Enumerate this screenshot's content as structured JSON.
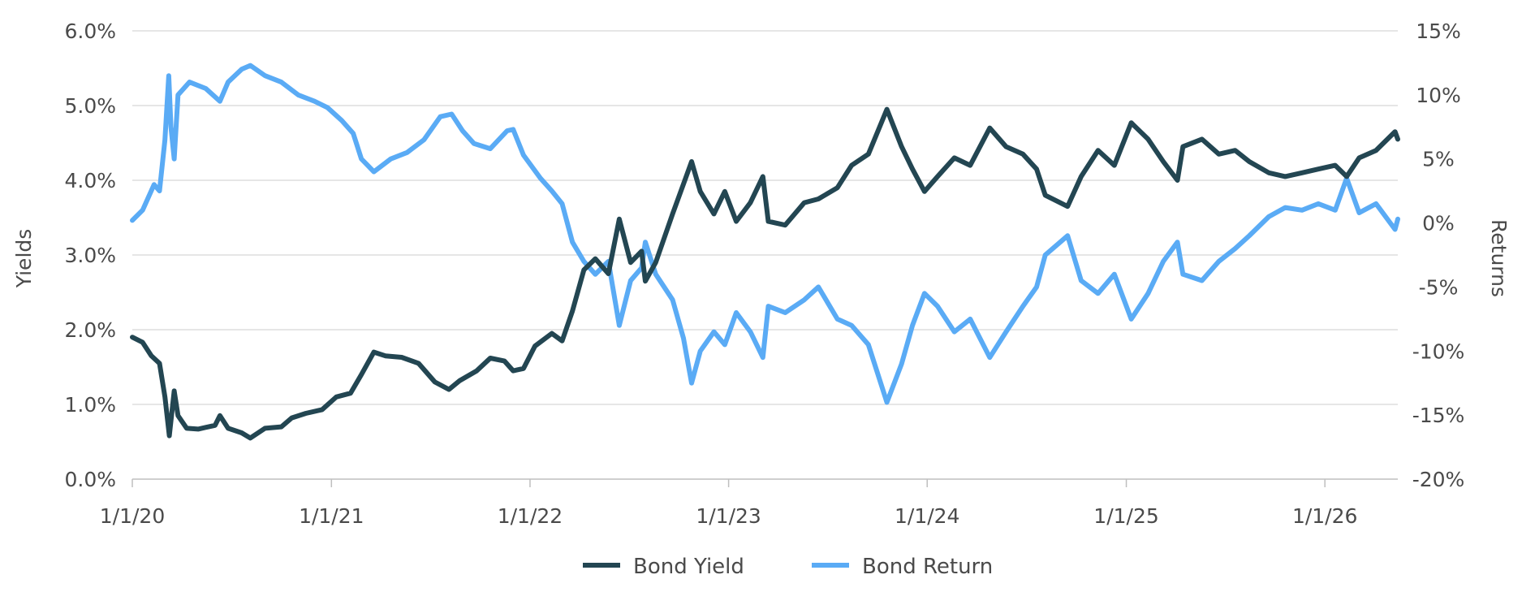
{
  "chart_data": {
    "type": "line",
    "x_tick_labels": [
      "1/1/20",
      "1/1/21",
      "1/1/22",
      "1/1/23",
      "1/1/24",
      "1/1/25",
      "1/1/26"
    ],
    "x_tick_dates": [
      "2020-01-01",
      "2021-01-01",
      "2022-01-01",
      "2023-01-01",
      "2024-01-01",
      "2025-01-01",
      "2026-01-01"
    ],
    "x_range": [
      "2020-01-01",
      "2026-05-15"
    ],
    "y_left": {
      "label": "Yields",
      "range": [
        0,
        6
      ],
      "ticks": [
        0,
        1,
        2,
        3,
        4,
        5,
        6
      ],
      "tick_labels": [
        "0.0%",
        "1.0%",
        "2.0%",
        "3.0%",
        "4.0%",
        "5.0%",
        "6.0%"
      ]
    },
    "y_right": {
      "label": "Returns",
      "range": [
        -20,
        15
      ],
      "ticks": [
        -20,
        -15,
        -10,
        -5,
        0,
        5,
        10,
        15
      ],
      "tick_labels": [
        "-20%",
        "-15%",
        "-10%",
        "-5%",
        "0%",
        "5%",
        "10%",
        "15%"
      ]
    },
    "grid": true,
    "legend_position": "bottom-center",
    "series": [
      {
        "name": "Bond Yield",
        "axis": "left",
        "color": "#234652",
        "points": [
          [
            "2020-01-01",
            1.9
          ],
          [
            "2020-01-20",
            1.83
          ],
          [
            "2020-02-05",
            1.65
          ],
          [
            "2020-02-20",
            1.55
          ],
          [
            "2020-03-01",
            1.1
          ],
          [
            "2020-03-09",
            0.58
          ],
          [
            "2020-03-18",
            1.18
          ],
          [
            "2020-03-25",
            0.85
          ],
          [
            "2020-04-10",
            0.68
          ],
          [
            "2020-05-01",
            0.67
          ],
          [
            "2020-06-01",
            0.72
          ],
          [
            "2020-06-10",
            0.85
          ],
          [
            "2020-06-25",
            0.68
          ],
          [
            "2020-07-20",
            0.62
          ],
          [
            "2020-08-05",
            0.55
          ],
          [
            "2020-09-01",
            0.68
          ],
          [
            "2020-10-01",
            0.7
          ],
          [
            "2020-10-20",
            0.82
          ],
          [
            "2020-11-15",
            0.88
          ],
          [
            "2020-12-15",
            0.93
          ],
          [
            "2021-01-10",
            1.1
          ],
          [
            "2021-02-05",
            1.15
          ],
          [
            "2021-02-25",
            1.4
          ],
          [
            "2021-03-20",
            1.7
          ],
          [
            "2021-04-10",
            1.65
          ],
          [
            "2021-05-10",
            1.63
          ],
          [
            "2021-06-10",
            1.55
          ],
          [
            "2021-07-10",
            1.3
          ],
          [
            "2021-08-05",
            1.2
          ],
          [
            "2021-08-25",
            1.32
          ],
          [
            "2021-09-25",
            1.45
          ],
          [
            "2021-10-20",
            1.62
          ],
          [
            "2021-11-15",
            1.58
          ],
          [
            "2021-12-01",
            1.45
          ],
          [
            "2021-12-20",
            1.48
          ],
          [
            "2022-01-10",
            1.78
          ],
          [
            "2022-02-10",
            1.95
          ],
          [
            "2022-03-01",
            1.85
          ],
          [
            "2022-03-20",
            2.25
          ],
          [
            "2022-04-10",
            2.8
          ],
          [
            "2022-05-01",
            2.95
          ],
          [
            "2022-05-25",
            2.75
          ],
          [
            "2022-06-14",
            3.48
          ],
          [
            "2022-07-05",
            2.9
          ],
          [
            "2022-07-25",
            3.05
          ],
          [
            "2022-08-01",
            2.65
          ],
          [
            "2022-08-20",
            2.9
          ],
          [
            "2022-09-20",
            3.55
          ],
          [
            "2022-10-10",
            3.95
          ],
          [
            "2022-10-25",
            4.25
          ],
          [
            "2022-11-10",
            3.85
          ],
          [
            "2022-12-05",
            3.55
          ],
          [
            "2022-12-25",
            3.85
          ],
          [
            "2023-01-15",
            3.45
          ],
          [
            "2023-02-10",
            3.7
          ],
          [
            "2023-03-05",
            4.05
          ],
          [
            "2023-03-15",
            3.45
          ],
          [
            "2023-04-15",
            3.4
          ],
          [
            "2023-05-20",
            3.7
          ],
          [
            "2023-06-15",
            3.75
          ],
          [
            "2023-07-20",
            3.9
          ],
          [
            "2023-08-15",
            4.2
          ],
          [
            "2023-09-15",
            4.35
          ],
          [
            "2023-10-19",
            4.95
          ],
          [
            "2023-11-15",
            4.45
          ],
          [
            "2023-12-05",
            4.15
          ],
          [
            "2023-12-27",
            3.85
          ],
          [
            "2024-01-20",
            4.05
          ],
          [
            "2024-02-20",
            4.3
          ],
          [
            "2024-03-20",
            4.2
          ],
          [
            "2024-04-25",
            4.7
          ],
          [
            "2024-05-25",
            4.45
          ],
          [
            "2024-06-25",
            4.35
          ],
          [
            "2024-07-20",
            4.15
          ],
          [
            "2024-08-05",
            3.8
          ],
          [
            "2024-09-15",
            3.65
          ],
          [
            "2024-10-10",
            4.05
          ],
          [
            "2024-11-10",
            4.4
          ],
          [
            "2024-12-10",
            4.2
          ],
          [
            "2025-01-10",
            4.77
          ],
          [
            "2025-02-10",
            4.55
          ],
          [
            "2025-03-10",
            4.25
          ],
          [
            "2025-04-05",
            4.0
          ],
          [
            "2025-04-15",
            4.45
          ],
          [
            "2025-05-20",
            4.55
          ],
          [
            "2025-06-20",
            4.35
          ],
          [
            "2025-07-20",
            4.4
          ],
          [
            "2025-08-15",
            4.25
          ],
          [
            "2025-09-20",
            4.1
          ],
          [
            "2025-10-20",
            4.05
          ],
          [
            "2025-11-20",
            4.1
          ],
          [
            "2025-12-20",
            4.15
          ],
          [
            "2026-01-20",
            4.2
          ],
          [
            "2026-02-10",
            4.05
          ],
          [
            "2026-03-05",
            4.3
          ],
          [
            "2026-04-05",
            4.4
          ],
          [
            "2026-05-10",
            4.65
          ],
          [
            "2026-05-15",
            4.55
          ]
        ]
      },
      {
        "name": "Bond Return",
        "axis": "right",
        "color": "#5aabf5",
        "points": [
          [
            "2020-01-01",
            0.2
          ],
          [
            "2020-01-20",
            1.0
          ],
          [
            "2020-02-10",
            3.0
          ],
          [
            "2020-02-20",
            2.5
          ],
          [
            "2020-03-01",
            6.5
          ],
          [
            "2020-03-08",
            11.5
          ],
          [
            "2020-03-12",
            7.5
          ],
          [
            "2020-03-18",
            5.0
          ],
          [
            "2020-03-25",
            10.0
          ],
          [
            "2020-04-15",
            11.0
          ],
          [
            "2020-05-15",
            10.5
          ],
          [
            "2020-06-10",
            9.5
          ],
          [
            "2020-06-25",
            11.0
          ],
          [
            "2020-07-20",
            12.0
          ],
          [
            "2020-08-05",
            12.3
          ],
          [
            "2020-09-01",
            11.5
          ],
          [
            "2020-10-01",
            11.0
          ],
          [
            "2020-11-01",
            10.0
          ],
          [
            "2020-12-01",
            9.5
          ],
          [
            "2020-12-25",
            9.0
          ],
          [
            "2021-01-20",
            8.0
          ],
          [
            "2021-02-10",
            7.0
          ],
          [
            "2021-02-25",
            5.0
          ],
          [
            "2021-03-20",
            4.0
          ],
          [
            "2021-04-20",
            5.0
          ],
          [
            "2021-05-20",
            5.5
          ],
          [
            "2021-06-20",
            6.5
          ],
          [
            "2021-07-20",
            8.3
          ],
          [
            "2021-08-10",
            8.5
          ],
          [
            "2021-08-30",
            7.2
          ],
          [
            "2021-09-20",
            6.2
          ],
          [
            "2021-10-20",
            5.8
          ],
          [
            "2021-11-20",
            7.2
          ],
          [
            "2021-12-01",
            7.3
          ],
          [
            "2021-12-20",
            5.3
          ],
          [
            "2022-01-20",
            3.5
          ],
          [
            "2022-02-10",
            2.5
          ],
          [
            "2022-03-01",
            1.5
          ],
          [
            "2022-03-20",
            -1.5
          ],
          [
            "2022-04-10",
            -3.0
          ],
          [
            "2022-05-01",
            -4.0
          ],
          [
            "2022-05-25",
            -3.0
          ],
          [
            "2022-06-14",
            -8.0
          ],
          [
            "2022-07-05",
            -4.5
          ],
          [
            "2022-07-25",
            -3.5
          ],
          [
            "2022-08-01",
            -1.5
          ],
          [
            "2022-08-20",
            -4.0
          ],
          [
            "2022-09-20",
            -6.0
          ],
          [
            "2022-10-10",
            -9.0
          ],
          [
            "2022-10-25",
            -12.5
          ],
          [
            "2022-11-10",
            -10.0
          ],
          [
            "2022-12-05",
            -8.5
          ],
          [
            "2022-12-25",
            -9.5
          ],
          [
            "2023-01-15",
            -7.0
          ],
          [
            "2023-02-10",
            -8.5
          ],
          [
            "2023-03-05",
            -10.5
          ],
          [
            "2023-03-15",
            -6.5
          ],
          [
            "2023-04-15",
            -7.0
          ],
          [
            "2023-05-20",
            -6.0
          ],
          [
            "2023-06-15",
            -5.0
          ],
          [
            "2023-07-20",
            -7.5
          ],
          [
            "2023-08-15",
            -8.0
          ],
          [
            "2023-09-15",
            -9.5
          ],
          [
            "2023-10-19",
            -14.0
          ],
          [
            "2023-11-15",
            -11.0
          ],
          [
            "2023-12-05",
            -8.0
          ],
          [
            "2023-12-27",
            -5.5
          ],
          [
            "2024-01-20",
            -6.5
          ],
          [
            "2024-02-20",
            -8.5
          ],
          [
            "2024-03-20",
            -7.5
          ],
          [
            "2024-04-25",
            -10.5
          ],
          [
            "2024-05-25",
            -8.5
          ],
          [
            "2024-06-25",
            -6.5
          ],
          [
            "2024-07-20",
            -5.0
          ],
          [
            "2024-08-05",
            -2.5
          ],
          [
            "2024-09-15",
            -1.0
          ],
          [
            "2024-10-10",
            -4.5
          ],
          [
            "2024-11-10",
            -5.5
          ],
          [
            "2024-12-10",
            -4.0
          ],
          [
            "2025-01-10",
            -7.5
          ],
          [
            "2025-02-10",
            -5.5
          ],
          [
            "2025-03-10",
            -3.0
          ],
          [
            "2025-04-05",
            -1.5
          ],
          [
            "2025-04-15",
            -4.0
          ],
          [
            "2025-05-20",
            -4.5
          ],
          [
            "2025-06-20",
            -3.0
          ],
          [
            "2025-07-20",
            -2.0
          ],
          [
            "2025-08-15",
            -1.0
          ],
          [
            "2025-09-20",
            0.5
          ],
          [
            "2025-10-20",
            1.2
          ],
          [
            "2025-11-20",
            1.0
          ],
          [
            "2025-12-20",
            1.5
          ],
          [
            "2026-01-20",
            1.0
          ],
          [
            "2026-02-10",
            3.5
          ],
          [
            "2026-03-05",
            0.8
          ],
          [
            "2026-04-05",
            1.5
          ],
          [
            "2026-05-10",
            -0.5
          ],
          [
            "2026-05-15",
            0.3
          ]
        ]
      }
    ]
  },
  "legend": {
    "items": [
      {
        "name": "Bond Yield",
        "color": "#234652"
      },
      {
        "name": "Bond Return",
        "color": "#5aabf5"
      }
    ]
  }
}
